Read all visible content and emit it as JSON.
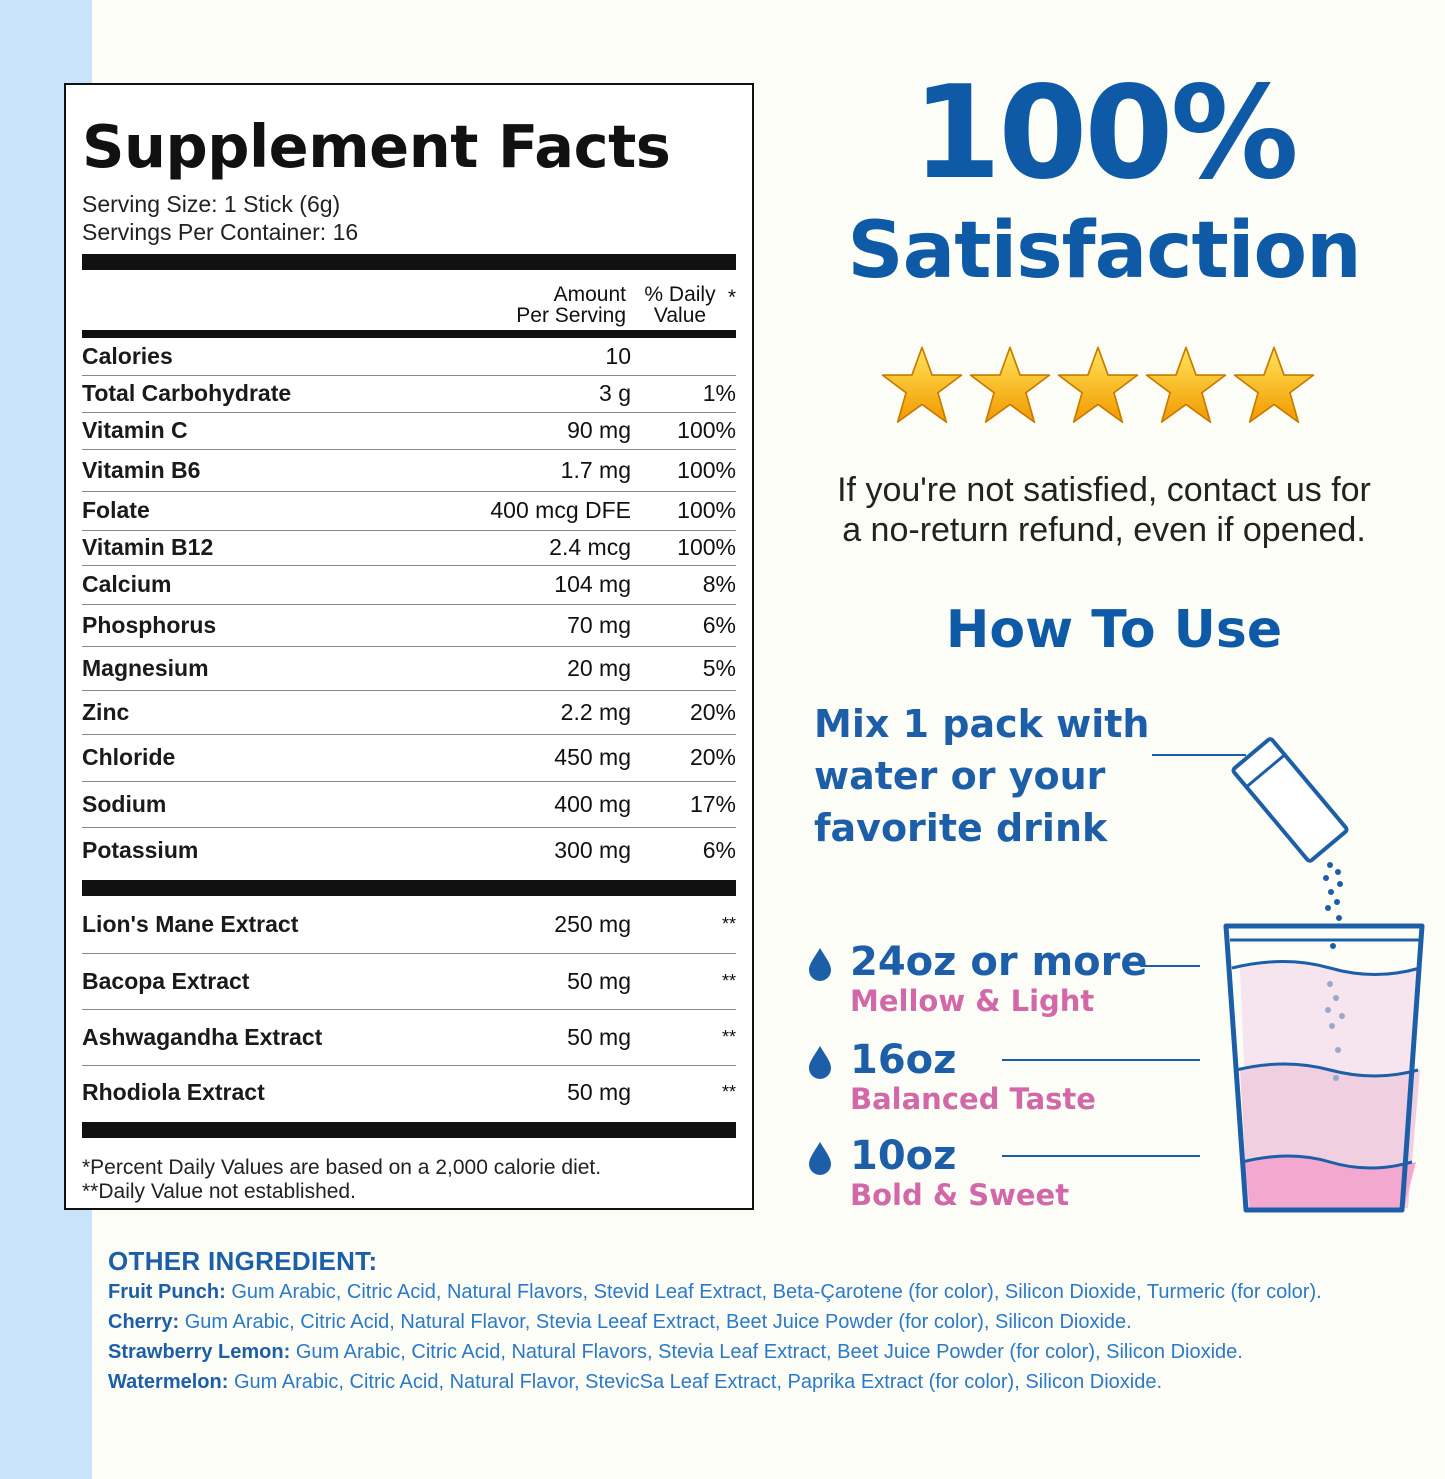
{
  "facts": {
    "title": "Supplement Facts",
    "serving_size": "Serving Size: 1 Stick (6g)",
    "servings_per_container": "Servings Per Container: 16",
    "header_amount_1": "Amount",
    "header_amount_2": "Per Serving",
    "header_dv_1": "% Daily",
    "header_dv_2": "Value",
    "header_star": "*",
    "nutrients": [
      {
        "name": "Calories",
        "amount": "10",
        "dv": ""
      },
      {
        "name": "Total Carbohydrate",
        "amount": "3 g",
        "dv": "1%"
      },
      {
        "name": "Vitamin C",
        "amount": "90 mg",
        "dv": "100%"
      },
      {
        "name": "Vitamin B6",
        "amount": "1.7 mg",
        "dv": "100%"
      },
      {
        "name": "Folate",
        "amount": "400 mcg DFE",
        "dv": "100%"
      },
      {
        "name": "Vitamin B12",
        "amount": "2.4 mcg",
        "dv": "100%"
      },
      {
        "name": "Calcium",
        "amount": "104 mg",
        "dv": "8%"
      },
      {
        "name": "Phosphorus",
        "amount": "70 mg",
        "dv": "6%"
      },
      {
        "name": "Magnesium",
        "amount": "20 mg",
        "dv": "5%"
      },
      {
        "name": "Zinc",
        "amount": "2.2 mg",
        "dv": "20%"
      },
      {
        "name": "Chloride",
        "amount": "450 mg",
        "dv": "20%"
      },
      {
        "name": "Sodium",
        "amount": "400 mg",
        "dv": "17%"
      },
      {
        "name": "Potassium",
        "amount": "300 mg",
        "dv": "6%"
      }
    ],
    "extracts": [
      {
        "name": "Lion's Mane Extract",
        "amount": "250 mg",
        "dv": "**"
      },
      {
        "name": "Bacopa Extract",
        "amount": "50 mg",
        "dv": "**"
      },
      {
        "name": "Ashwagandha Extract",
        "amount": "50 mg",
        "dv": "**"
      },
      {
        "name": "Rhodiola Extract",
        "amount": "50 mg",
        "dv": "**"
      }
    ],
    "footnote_1": "*Percent Daily Values are based on a 2,000 calorie diet.",
    "footnote_2": "**Daily Value not established."
  },
  "satisfaction": {
    "percent": "100%",
    "word": "Satisfaction",
    "rating": 5,
    "rating_max": 5,
    "promise_1": "If you're not satisfied, contact us for",
    "promise_2": "a no-return refund, even if opened."
  },
  "how_to": {
    "title": "How To Use",
    "mix_1": "Mix 1 pack with",
    "mix_2": "water or your",
    "mix_3": "favorite drink",
    "options": [
      {
        "oz": "24oz or more",
        "taste": "Mellow & Light"
      },
      {
        "oz": "16oz",
        "taste": "Balanced Taste"
      },
      {
        "oz": "10oz",
        "taste": "Bold & Sweet"
      }
    ]
  },
  "other_ingredients": {
    "title": "OTHER INGREDIENT:",
    "lines": [
      {
        "flavor": "Fruit Punch:",
        "text": " Gum Arabic, Citric Acid, Natural Flavors, Stevid Leaf Extract, Beta-Çarotene (for color), Silicon Dioxide, Turmeric (for color)."
      },
      {
        "flavor": "Cherry:",
        "text": " Gum Arabic, Citric Acid, Natural Flavor, Stevia Leeaf Extract, Beet Juice Powder (for color), Silicon Dioxide."
      },
      {
        "flavor": "Strawberry Lemon:",
        "text": " Gum Arabic, Citric Acid, Natural Flavors, Stevia Leaf Extract, Beet Juice Powder (for color), Silicon Dioxide."
      },
      {
        "flavor": "Watermelon:",
        "text": " Gum Arabic, Citric Acid, Natural Flavor, StevicSa Leaf Extract, Paprika Extract (for color), Silicon Dioxide."
      }
    ]
  },
  "colors": {
    "brand_blue": "#0e5aa6",
    "pink": "#d268a8",
    "side_strip": "#c8e3fb",
    "star_gold": "#f5b400"
  }
}
